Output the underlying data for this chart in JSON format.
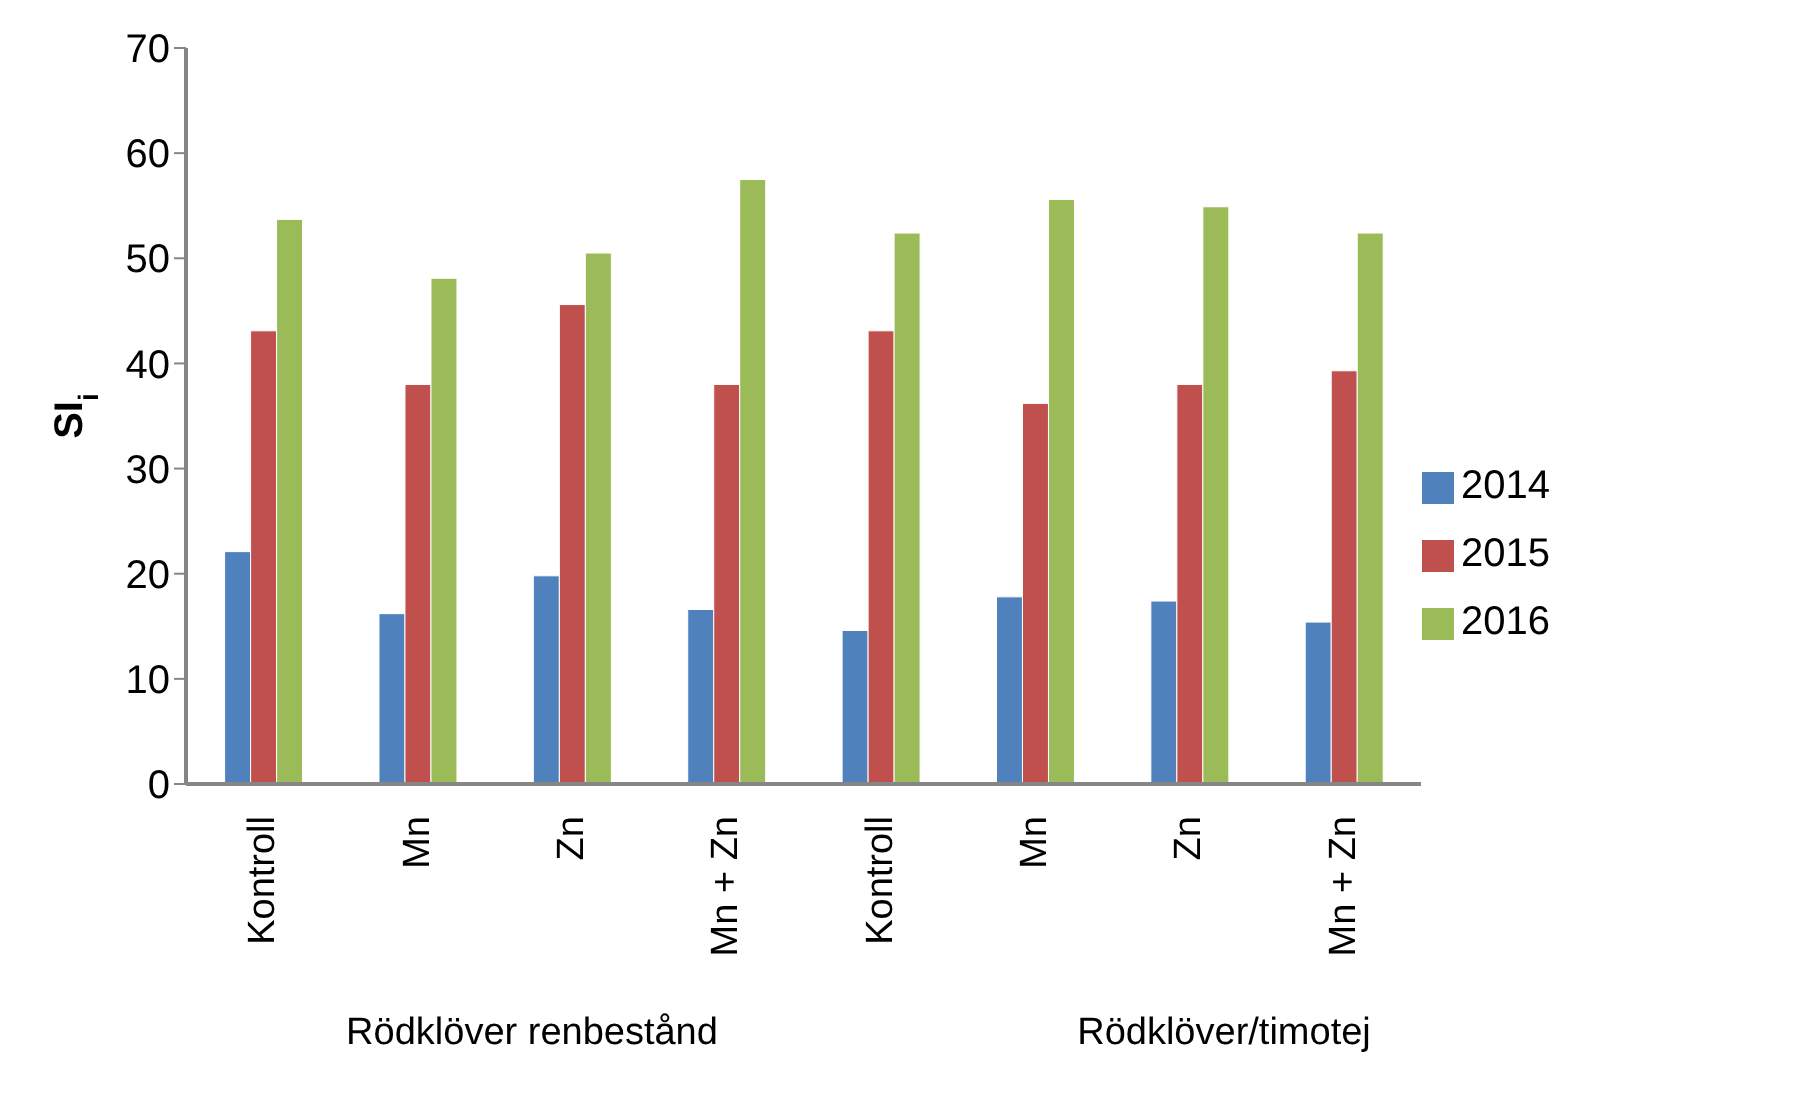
{
  "chart_data": {
    "type": "bar",
    "ylabel": "SI$_{i}$",
    "categories": [
      "Kontroll",
      "Mn",
      "Zn",
      "Mn + Zn",
      "Kontroll",
      "Mn",
      "Zn",
      "Mn + Zn"
    ],
    "series": [
      {
        "name": "2014",
        "color": "#4f81bd",
        "values": [
          22.1,
          16.2,
          19.8,
          16.6,
          14.6,
          17.8,
          17.4,
          15.4
        ]
      },
      {
        "name": "2015",
        "color": "#c0504d",
        "values": [
          43.1,
          38.0,
          45.6,
          38.0,
          43.1,
          36.2,
          38.0,
          39.3
        ]
      },
      {
        "name": "2016",
        "color": "#9bbb59",
        "values": [
          53.7,
          48.1,
          50.5,
          57.5,
          52.4,
          55.6,
          54.9,
          52.4
        ]
      }
    ],
    "ylim": [
      0,
      70
    ],
    "yticks": [
      0,
      10,
      20,
      30,
      40,
      50,
      60,
      70
    ],
    "annotations": [
      "Rödklöver renbestånd",
      "Rödklöver/timotej"
    ],
    "grid": false,
    "legend": "right"
  }
}
